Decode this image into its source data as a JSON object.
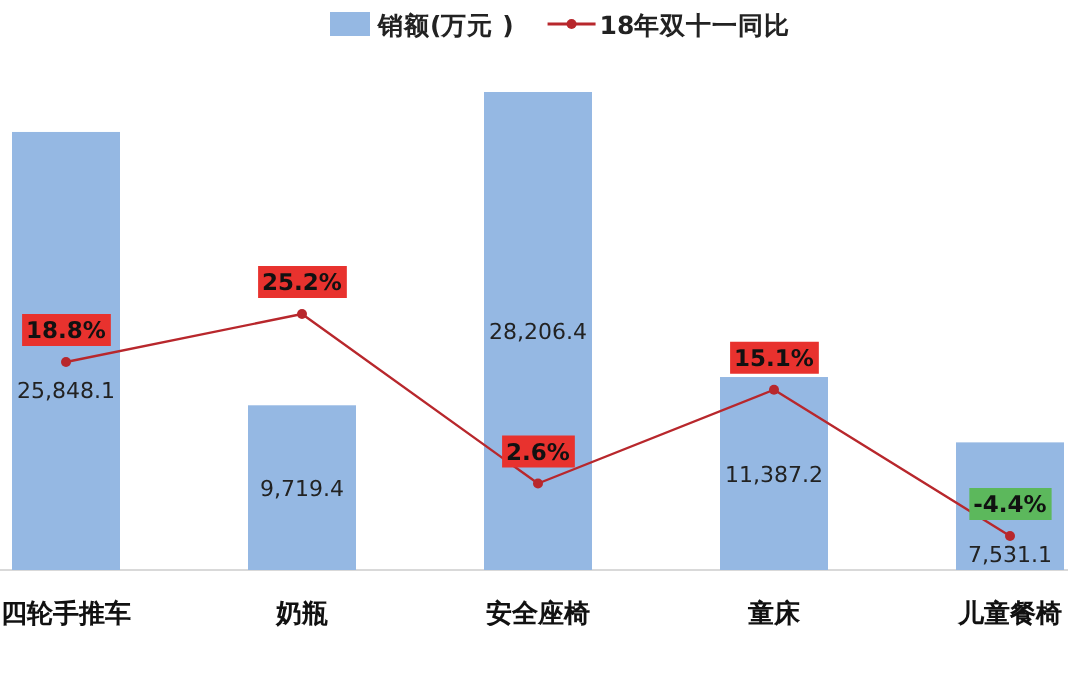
{
  "chart_data": {
    "type": "bar",
    "categories": [
      "四轮手推车",
      "奶瓶",
      "安全座椅",
      "童床",
      "儿童餐椅"
    ],
    "series": [
      {
        "name": "销额(万元 )",
        "type": "bar",
        "color": "#95b8e3",
        "values": [
          25848.1,
          9719.4,
          28206.4,
          11387.2,
          7531.1
        ],
        "value_labels": [
          "25,848.1",
          "9,719.4",
          "28,206.4",
          "11,387.2",
          "7,531.1"
        ]
      },
      {
        "name": "18年双十一同比",
        "type": "line",
        "axis": "y2",
        "color": "#b8272c",
        "marker": "circle",
        "values": [
          18.8,
          25.2,
          2.6,
          15.1,
          -4.4
        ],
        "value_labels": [
          "18.8%",
          "25.2%",
          "2.6%",
          "15.1%",
          "-4.4%"
        ]
      }
    ],
    "legend": "top"
  }
}
